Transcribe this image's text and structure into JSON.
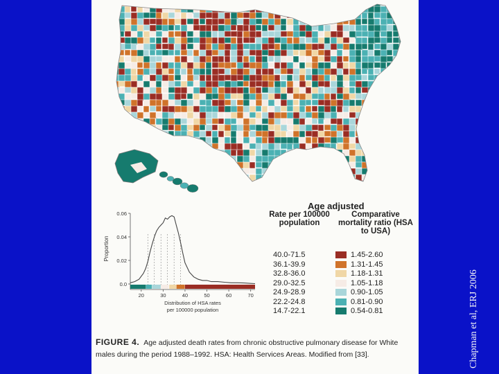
{
  "citation": "Chapman et al, ERJ 2006",
  "legend": {
    "title": "Age adjusted",
    "rate_header": "Rate per 100000 population",
    "ratio_header": "Comparative mortality ratio (HSA to USA)",
    "rates": [
      "40.0-71.5",
      "36.1-39.9",
      "32.8-36.0",
      "29.0-32.5",
      "24.9-28.9",
      "22.2-24.8",
      "14.7-22.1"
    ],
    "ratios": [
      "1.45-2.60",
      "1.31-1.45",
      "1.18-1.31",
      "1.05-1.18",
      "0.90-1.05",
      "0.81-0.90",
      "0.54-0.81"
    ],
    "colors": [
      "#9a2d24",
      "#d0732a",
      "#f0d7a6",
      "#f6ece6",
      "#a9d6da",
      "#4bb1b3",
      "#167b6e"
    ]
  },
  "chart_data": {
    "type": "line",
    "ylabel": "Proportion",
    "xlabel": "Distribution of HSA rates per 100000 population",
    "yticks": [
      "0.06",
      "0.04",
      "0.02",
      "0.0"
    ],
    "xticks": [
      "20",
      "30",
      "40",
      "50",
      "60",
      "70"
    ],
    "ylim": [
      0,
      0.06
    ],
    "xlim": [
      15,
      72
    ],
    "x": [
      15,
      17,
      19,
      21,
      22,
      23,
      24,
      25,
      26,
      27,
      28,
      29,
      30,
      31,
      32,
      33,
      34,
      35,
      36,
      37,
      38,
      39,
      40,
      42,
      44,
      46,
      48,
      50,
      52,
      55,
      58,
      61,
      64,
      67,
      70,
      72
    ],
    "y": [
      0.001,
      0.002,
      0.004,
      0.009,
      0.013,
      0.019,
      0.027,
      0.034,
      0.04,
      0.045,
      0.048,
      0.05,
      0.052,
      0.056,
      0.055,
      0.057,
      0.058,
      0.057,
      0.05,
      0.043,
      0.035,
      0.026,
      0.018,
      0.01,
      0.006,
      0.004,
      0.003,
      0.003,
      0.002,
      0.002,
      0.0015,
      0.001,
      0.001,
      0.0008,
      0.0005,
      0.0003
    ]
  },
  "caption": {
    "label": "FIGURE 4.",
    "text": "Age adjusted death rates from chronic obstructive pulmonary disease for White males during the period 1988–1992. HSA: Health Services Areas. Modified from [33]."
  }
}
